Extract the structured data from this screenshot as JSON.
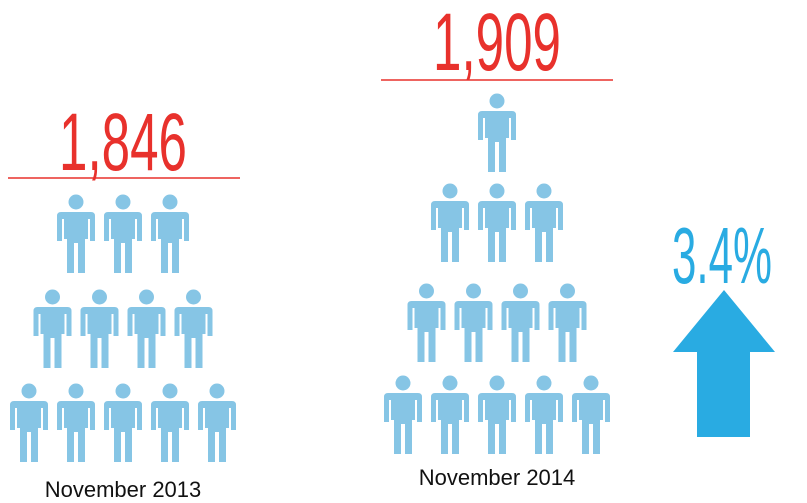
{
  "groups": [
    {
      "value": "1,846",
      "label": "November 2013"
    },
    {
      "value": "1,909",
      "label": "November 2014"
    }
  ],
  "change": "3.4%"
}
